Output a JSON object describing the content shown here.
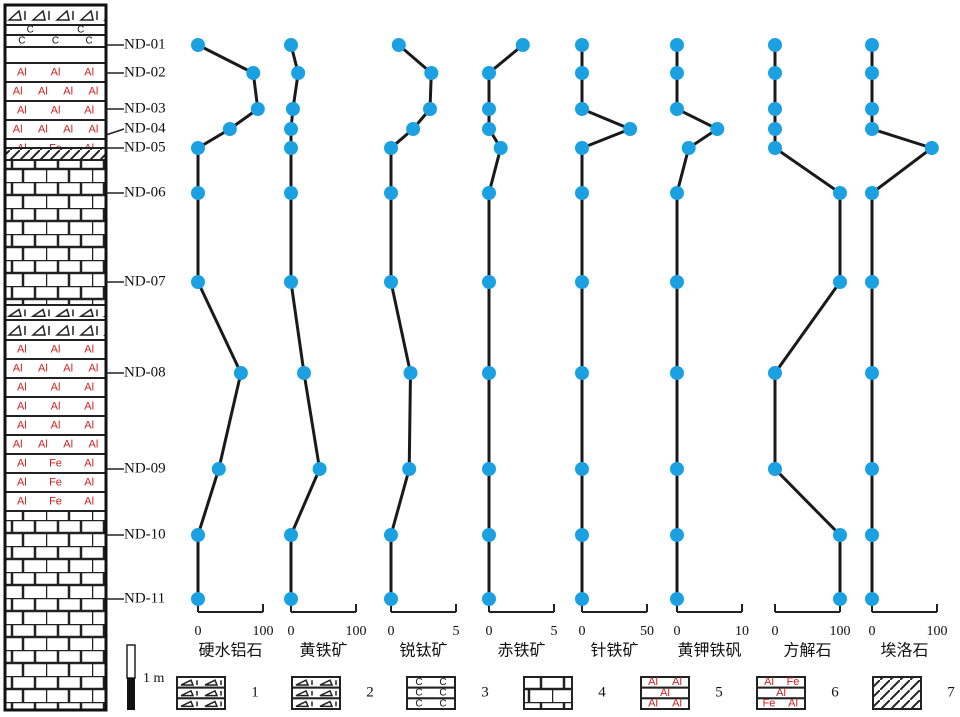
{
  "chart_data": {
    "type": "line",
    "categories": [
      "ND-01",
      "ND-02",
      "ND-03",
      "ND-04",
      "ND-05",
      "ND-06",
      "ND-07",
      "ND-08",
      "ND-09",
      "ND-10",
      "ND-11"
    ],
    "marker_color": "#1ba1e2",
    "line_color": "#1a1a1a",
    "panels": [
      {
        "name": "硬水铝石",
        "xlim": [
          0,
          100
        ],
        "xticks": [
          0,
          100
        ],
        "values": [
          0,
          85,
          92,
          49,
          0,
          0,
          0,
          66,
          32,
          0,
          0
        ]
      },
      {
        "name": "黄铁矿",
        "xlim": [
          0,
          100
        ],
        "xticks": [
          0,
          100
        ],
        "values": [
          0,
          11,
          3,
          0,
          0,
          0,
          0,
          20,
          44,
          0,
          0
        ]
      },
      {
        "name": "锐钛矿",
        "xlim": [
          0,
          5
        ],
        "xticks": [
          0,
          5
        ],
        "values": [
          0.6,
          3.1,
          3.0,
          1.7,
          0,
          0,
          0,
          1.5,
          1.4,
          0,
          0
        ]
      },
      {
        "name": "赤铁矿",
        "xlim": [
          0,
          5
        ],
        "xticks": [
          0,
          5
        ],
        "values": [
          2.6,
          0,
          0,
          0,
          0.9,
          0,
          0,
          0,
          0,
          0,
          0
        ]
      },
      {
        "name": "针铁矿",
        "xlim": [
          0,
          50
        ],
        "xticks": [
          0,
          50
        ],
        "values": [
          0,
          0,
          0,
          37,
          0,
          0,
          0,
          0,
          0,
          0,
          0
        ]
      },
      {
        "name": "黄钾铁矾",
        "xlim": [
          0,
          10
        ],
        "xticks": [
          0,
          10
        ],
        "values": [
          0,
          0,
          0,
          6.2,
          1.8,
          0,
          0,
          0,
          0,
          0,
          0
        ]
      },
      {
        "name": "方解石",
        "xlim": [
          0,
          100
        ],
        "xticks": [
          0,
          100
        ],
        "values": [
          0,
          0,
          0,
          0,
          0,
          100,
          100,
          0,
          0,
          100,
          100
        ]
      },
      {
        "name": "埃洛石",
        "xlim": [
          0,
          100
        ],
        "xticks": [
          0,
          100
        ],
        "values": [
          0,
          0,
          0,
          0,
          92,
          0,
          0,
          0,
          0,
          0,
          0
        ]
      }
    ]
  },
  "legend": {
    "scale_label": "1 m",
    "items": [
      "1",
      "2",
      "3",
      "4",
      "5",
      "6",
      "7"
    ]
  },
  "lithology_symbols": {
    "al": "Al",
    "fe": "Fe",
    "c": "C"
  }
}
